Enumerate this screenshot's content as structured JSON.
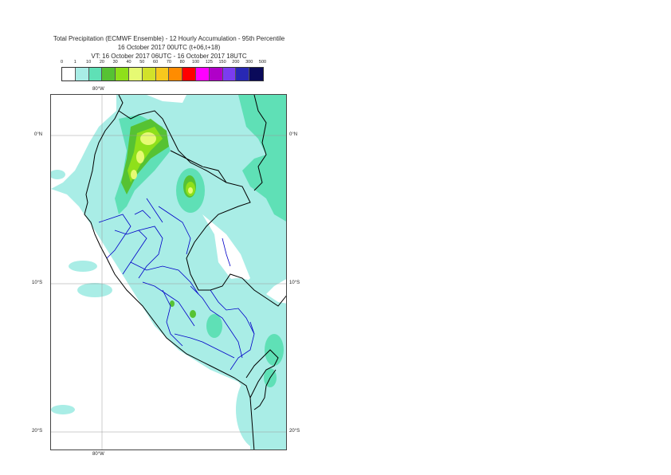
{
  "title": {
    "line1": "Total Precipitation (ECMWF Ensemble) - 12 Hourly Accumulation - 95th Percentile",
    "line2": "16 October 2017 00UTC (t+06,t+18)",
    "line3": "VT: 16 October 2017 06UTC - 16 October 2017 18UTC"
  },
  "legend": {
    "thresholds": [
      "0",
      "1",
      "10",
      "20",
      "30",
      "40",
      "50",
      "60",
      "70",
      "80",
      "100",
      "125",
      "150",
      "200",
      "300",
      "500"
    ],
    "colors": [
      "#ffffff",
      "#a9ede6",
      "#5fe0b6",
      "#56c233",
      "#8fe01a",
      "#e6fa73",
      "#d2e12a",
      "#f7c81e",
      "#ff8c00",
      "#ff0000",
      "#ff00ff",
      "#b000c8",
      "#7b3cf0",
      "#2828b4",
      "#0a0a5a"
    ]
  },
  "axes": {
    "lon_top": "80°W",
    "lon_bottom": "80°W",
    "lat_left": [
      "0°N",
      "10°S",
      "20°S"
    ],
    "lat_right": [
      "0°N",
      "10°S",
      "20°S"
    ]
  }
}
